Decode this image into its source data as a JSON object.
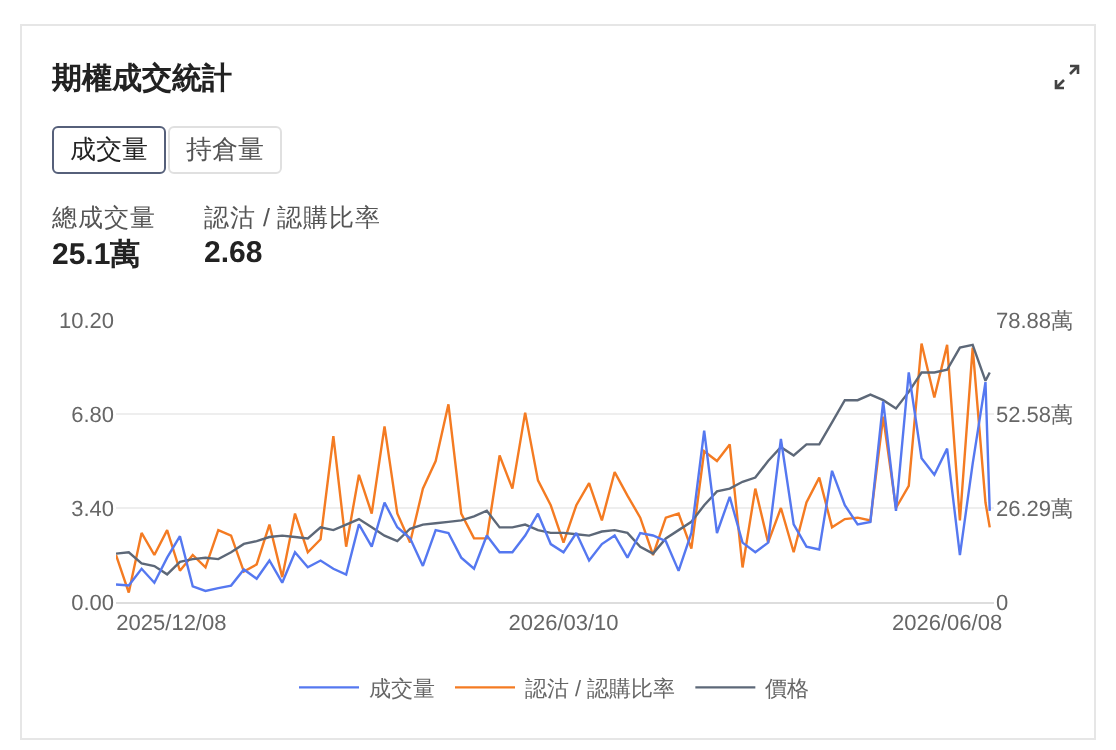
{
  "chart_data": {
    "type": "line",
    "title": "期權成交統計",
    "annotations": [
      "成交量",
      "持倉量",
      "總成交量",
      "25.1萬",
      "認沽 / 認購比率",
      "2.68"
    ],
    "x": [
      "2025-11-25",
      "2025-11-28",
      "2025-12-01",
      "2025-12-04",
      "2025-12-07",
      "2025-12-10",
      "2025-12-13",
      "2025-12-16",
      "2025-12-19",
      "2025-12-22",
      "2025-12-25",
      "2025-12-28",
      "2025-12-31",
      "2026-01-03",
      "2026-01-06",
      "2026-01-09",
      "2026-01-12",
      "2026-01-15",
      "2026-01-18",
      "2026-01-21",
      "2026-01-24",
      "2026-01-27",
      "2026-01-30",
      "2026-02-02",
      "2026-02-05",
      "2026-02-08",
      "2026-02-11",
      "2026-02-14",
      "2026-02-17",
      "2026-02-20",
      "2026-02-23",
      "2026-02-26",
      "2026-03-01",
      "2026-03-04",
      "2026-03-07",
      "2026-03-10",
      "2026-03-13",
      "2026-03-16",
      "2026-03-19",
      "2026-03-22",
      "2026-03-25",
      "2026-03-28",
      "2026-03-31",
      "2026-04-03",
      "2026-04-06",
      "2026-04-09",
      "2026-04-12",
      "2026-04-15",
      "2026-04-18",
      "2026-04-21",
      "2026-04-24",
      "2026-04-27",
      "2026-04-30",
      "2026-05-03",
      "2026-05-06",
      "2026-05-09",
      "2026-05-12",
      "2026-05-15",
      "2026-05-18",
      "2026-05-21",
      "2026-05-24",
      "2026-05-27",
      "2026-05-30",
      "2026-06-02",
      "2026-06-05",
      "2026-06-08",
      "2026-06-11",
      "2026-06-14",
      "2026-06-17",
      "2026-06-18"
    ],
    "series": [
      {
        "name": "成交量",
        "color": "#5578f0",
        "axis": "y2",
        "values": [
          4.9,
          4.6,
          9.3,
          5.4,
          12.4,
          18.4,
          4.4,
          3.1,
          3.9,
          4.6,
          9.1,
          6.5,
          11.6,
          5.4,
          13.9,
          9.7,
          11.6,
          9.3,
          7.7,
          21.7,
          15.5,
          27.8,
          20.9,
          17.8,
          10.1,
          20.1,
          19.3,
          12.4,
          9.3,
          18.6,
          13.9,
          13.9,
          18.6,
          24.7,
          16.2,
          13.9,
          19.3,
          11.6,
          16.2,
          18.6,
          12.4,
          19.3,
          18.6,
          17.0,
          8.7,
          19.3,
          47.9,
          19.3,
          29.4,
          16.6,
          13.9,
          16.6,
          45.6,
          21.7,
          15.5,
          14.7,
          36.7,
          27.1,
          21.7,
          22.4,
          56.1,
          25.5,
          64.2,
          40.2,
          35.6,
          42.9,
          13.1,
          38.7,
          61.5,
          25.5
        ]
      },
      {
        "name": "認沽 / 認購比率",
        "color": "#f47b22",
        "values": [
          1.7,
          0.34,
          2.5,
          1.7,
          2.6,
          1.13,
          1.7,
          1.25,
          2.6,
          2.4,
          1.1,
          1.36,
          2.8,
          0.9,
          3.2,
          1.8,
          2.27,
          6.0,
          2.0,
          4.6,
          3.2,
          6.35,
          3.2,
          2.15,
          4.1,
          5.1,
          7.15,
          3.2,
          2.3,
          2.3,
          5.3,
          4.1,
          6.85,
          4.4,
          3.5,
          2.15,
          3.5,
          4.3,
          2.95,
          4.7,
          3.85,
          3.05,
          1.7,
          3.05,
          3.2,
          1.93,
          5.45,
          5.1,
          5.7,
          1.25,
          4.1,
          2.15,
          3.4,
          1.8,
          3.6,
          4.5,
          2.7,
          3.0,
          3.05,
          2.95,
          6.7,
          3.4,
          4.2,
          9.35,
          7.4,
          9.3,
          2.95,
          9.2,
          3.6,
          2.7
        ]
      },
      {
        "name": "價格",
        "color": "#5d6878",
        "values": [
          1.75,
          1.8,
          1.4,
          1.3,
          1.0,
          1.45,
          1.55,
          1.6,
          1.55,
          1.8,
          2.1,
          2.2,
          2.35,
          2.4,
          2.35,
          2.3,
          2.7,
          2.6,
          2.8,
          3.0,
          2.7,
          2.4,
          2.2,
          2.65,
          2.8,
          2.85,
          2.9,
          2.95,
          3.1,
          3.3,
          2.7,
          2.7,
          2.8,
          2.6,
          2.5,
          2.5,
          2.45,
          2.4,
          2.55,
          2.6,
          2.5,
          2.0,
          1.75,
          2.3,
          2.6,
          2.9,
          3.5,
          4.0,
          4.1,
          4.35,
          4.5,
          5.1,
          5.6,
          5.3,
          5.7,
          5.7,
          6.5,
          7.3,
          7.3,
          7.5,
          7.3,
          7.0,
          7.6,
          8.3,
          8.3,
          8.4,
          9.2,
          9.3,
          8.0,
          8.3
        ]
      }
    ],
    "xlim": [
      "2025-11-25",
      "2026-06-19"
    ],
    "xticks": [
      {
        "value": "2025-12-08",
        "label": "2025/12/08"
      },
      {
        "value": "2026-03-10",
        "label": "2026/03/10"
      },
      {
        "value": "2026-06-08",
        "label": "2026/06/08"
      }
    ],
    "ylim": [
      0,
      10.2
    ],
    "yticks": [
      {
        "value": 0,
        "label": "0.00"
      },
      {
        "value": 3.4,
        "label": "3.40"
      },
      {
        "value": 6.8,
        "label": "6.80"
      },
      {
        "value": 10.2,
        "label": "10.20"
      }
    ],
    "y2lim": [
      0,
      78.88
    ],
    "y2ticks": [
      0,
      {
        "value": 26.29,
        "label": "26.29萬"
      },
      {
        "value": 52.58,
        "label": "52.58萬"
      },
      {
        "value": 78.88,
        "label": "78.88萬"
      }
    ],
    "grid": "y",
    "legend": "bottom"
  }
}
